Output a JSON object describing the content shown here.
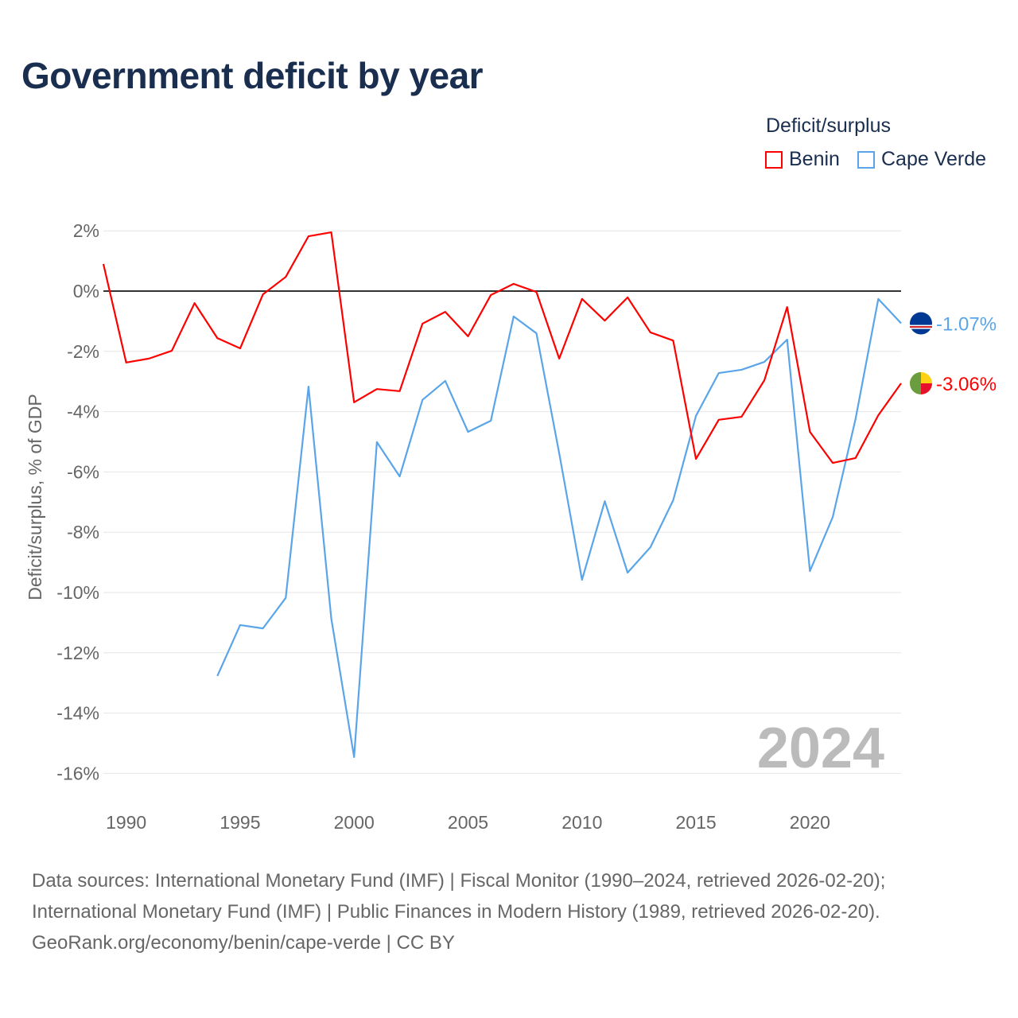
{
  "title": "Government deficit by year",
  "legend": {
    "title": "Deficit/surplus",
    "items": [
      "Benin",
      "Cape Verde"
    ]
  },
  "watermark_year": "2024",
  "footer": [
    "Data sources: International Monetary Fund (IMF) | Fiscal Monitor (1990–2024, retrieved 2026-02-20);",
    "International Monetary Fund (IMF) | Public Finances in Modern History (1989, retrieved 2026-02-20).",
    "GeoRank.org/economy/benin/cape-verde | CC BY"
  ],
  "chart_data": {
    "type": "line",
    "title": "Government deficit by year",
    "ylabel": "Deficit/surplus, % of GDP",
    "xlabel": "",
    "xlim": [
      1989,
      2024
    ],
    "ylim": [
      -17,
      2.5
    ],
    "xticks": [
      1990,
      1995,
      2000,
      2005,
      2010,
      2015,
      2020
    ],
    "yticks": [
      2,
      0,
      -2,
      -4,
      -6,
      -8,
      -10,
      -12,
      -14,
      -16
    ],
    "ytick_labels": [
      "2%",
      "0%",
      "-2%",
      "-4%",
      "-6%",
      "-8%",
      "-10%",
      "-12%",
      "-14%",
      "-16%"
    ],
    "grid": true,
    "legend_position": "top-right",
    "series": [
      {
        "name": "Benin",
        "color": "#ff0000",
        "end_label": "-3.06%",
        "x": [
          1989,
          1990,
          1991,
          1992,
          1993,
          1994,
          1995,
          1996,
          1997,
          1998,
          1999,
          2000,
          2001,
          2002,
          2003,
          2004,
          2005,
          2006,
          2007,
          2008,
          2009,
          2010,
          2011,
          2012,
          2013,
          2014,
          2015,
          2016,
          2017,
          2018,
          2019,
          2020,
          2021,
          2022,
          2023,
          2024
        ],
        "values": [
          0.9,
          -2.37,
          -2.24,
          -1.98,
          -0.4,
          -1.56,
          -1.9,
          -0.11,
          0.47,
          1.82,
          1.95,
          -3.69,
          -3.25,
          -3.32,
          -1.08,
          -0.69,
          -1.5,
          -0.13,
          0.24,
          -0.03,
          -2.24,
          -0.26,
          -0.98,
          -0.21,
          -1.37,
          -1.64,
          -5.57,
          -4.27,
          -4.17,
          -2.96,
          -0.53,
          -4.67,
          -5.7,
          -5.54,
          -4.12,
          -3.06
        ]
      },
      {
        "name": "Cape Verde",
        "color": "#5aa5ea",
        "end_label": "-1.07%",
        "x": [
          1994,
          1995,
          1996,
          1997,
          1998,
          1999,
          2000,
          2001,
          2002,
          2003,
          2004,
          2005,
          2006,
          2007,
          2008,
          2009,
          2010,
          2011,
          2012,
          2013,
          2014,
          2015,
          2016,
          2017,
          2018,
          2019,
          2020,
          2021,
          2022,
          2023,
          2024
        ],
        "values": [
          -12.77,
          -11.08,
          -11.19,
          -10.18,
          -3.17,
          -10.87,
          -15.46,
          -5.01,
          -6.15,
          -3.61,
          -2.98,
          -4.67,
          -4.3,
          -0.84,
          -1.4,
          -5.38,
          -9.58,
          -6.97,
          -9.34,
          -8.5,
          -6.94,
          -4.14,
          -2.72,
          -2.61,
          -2.35,
          -1.61,
          -9.29,
          -7.5,
          -4.25,
          -0.26,
          -1.07
        ]
      }
    ]
  }
}
